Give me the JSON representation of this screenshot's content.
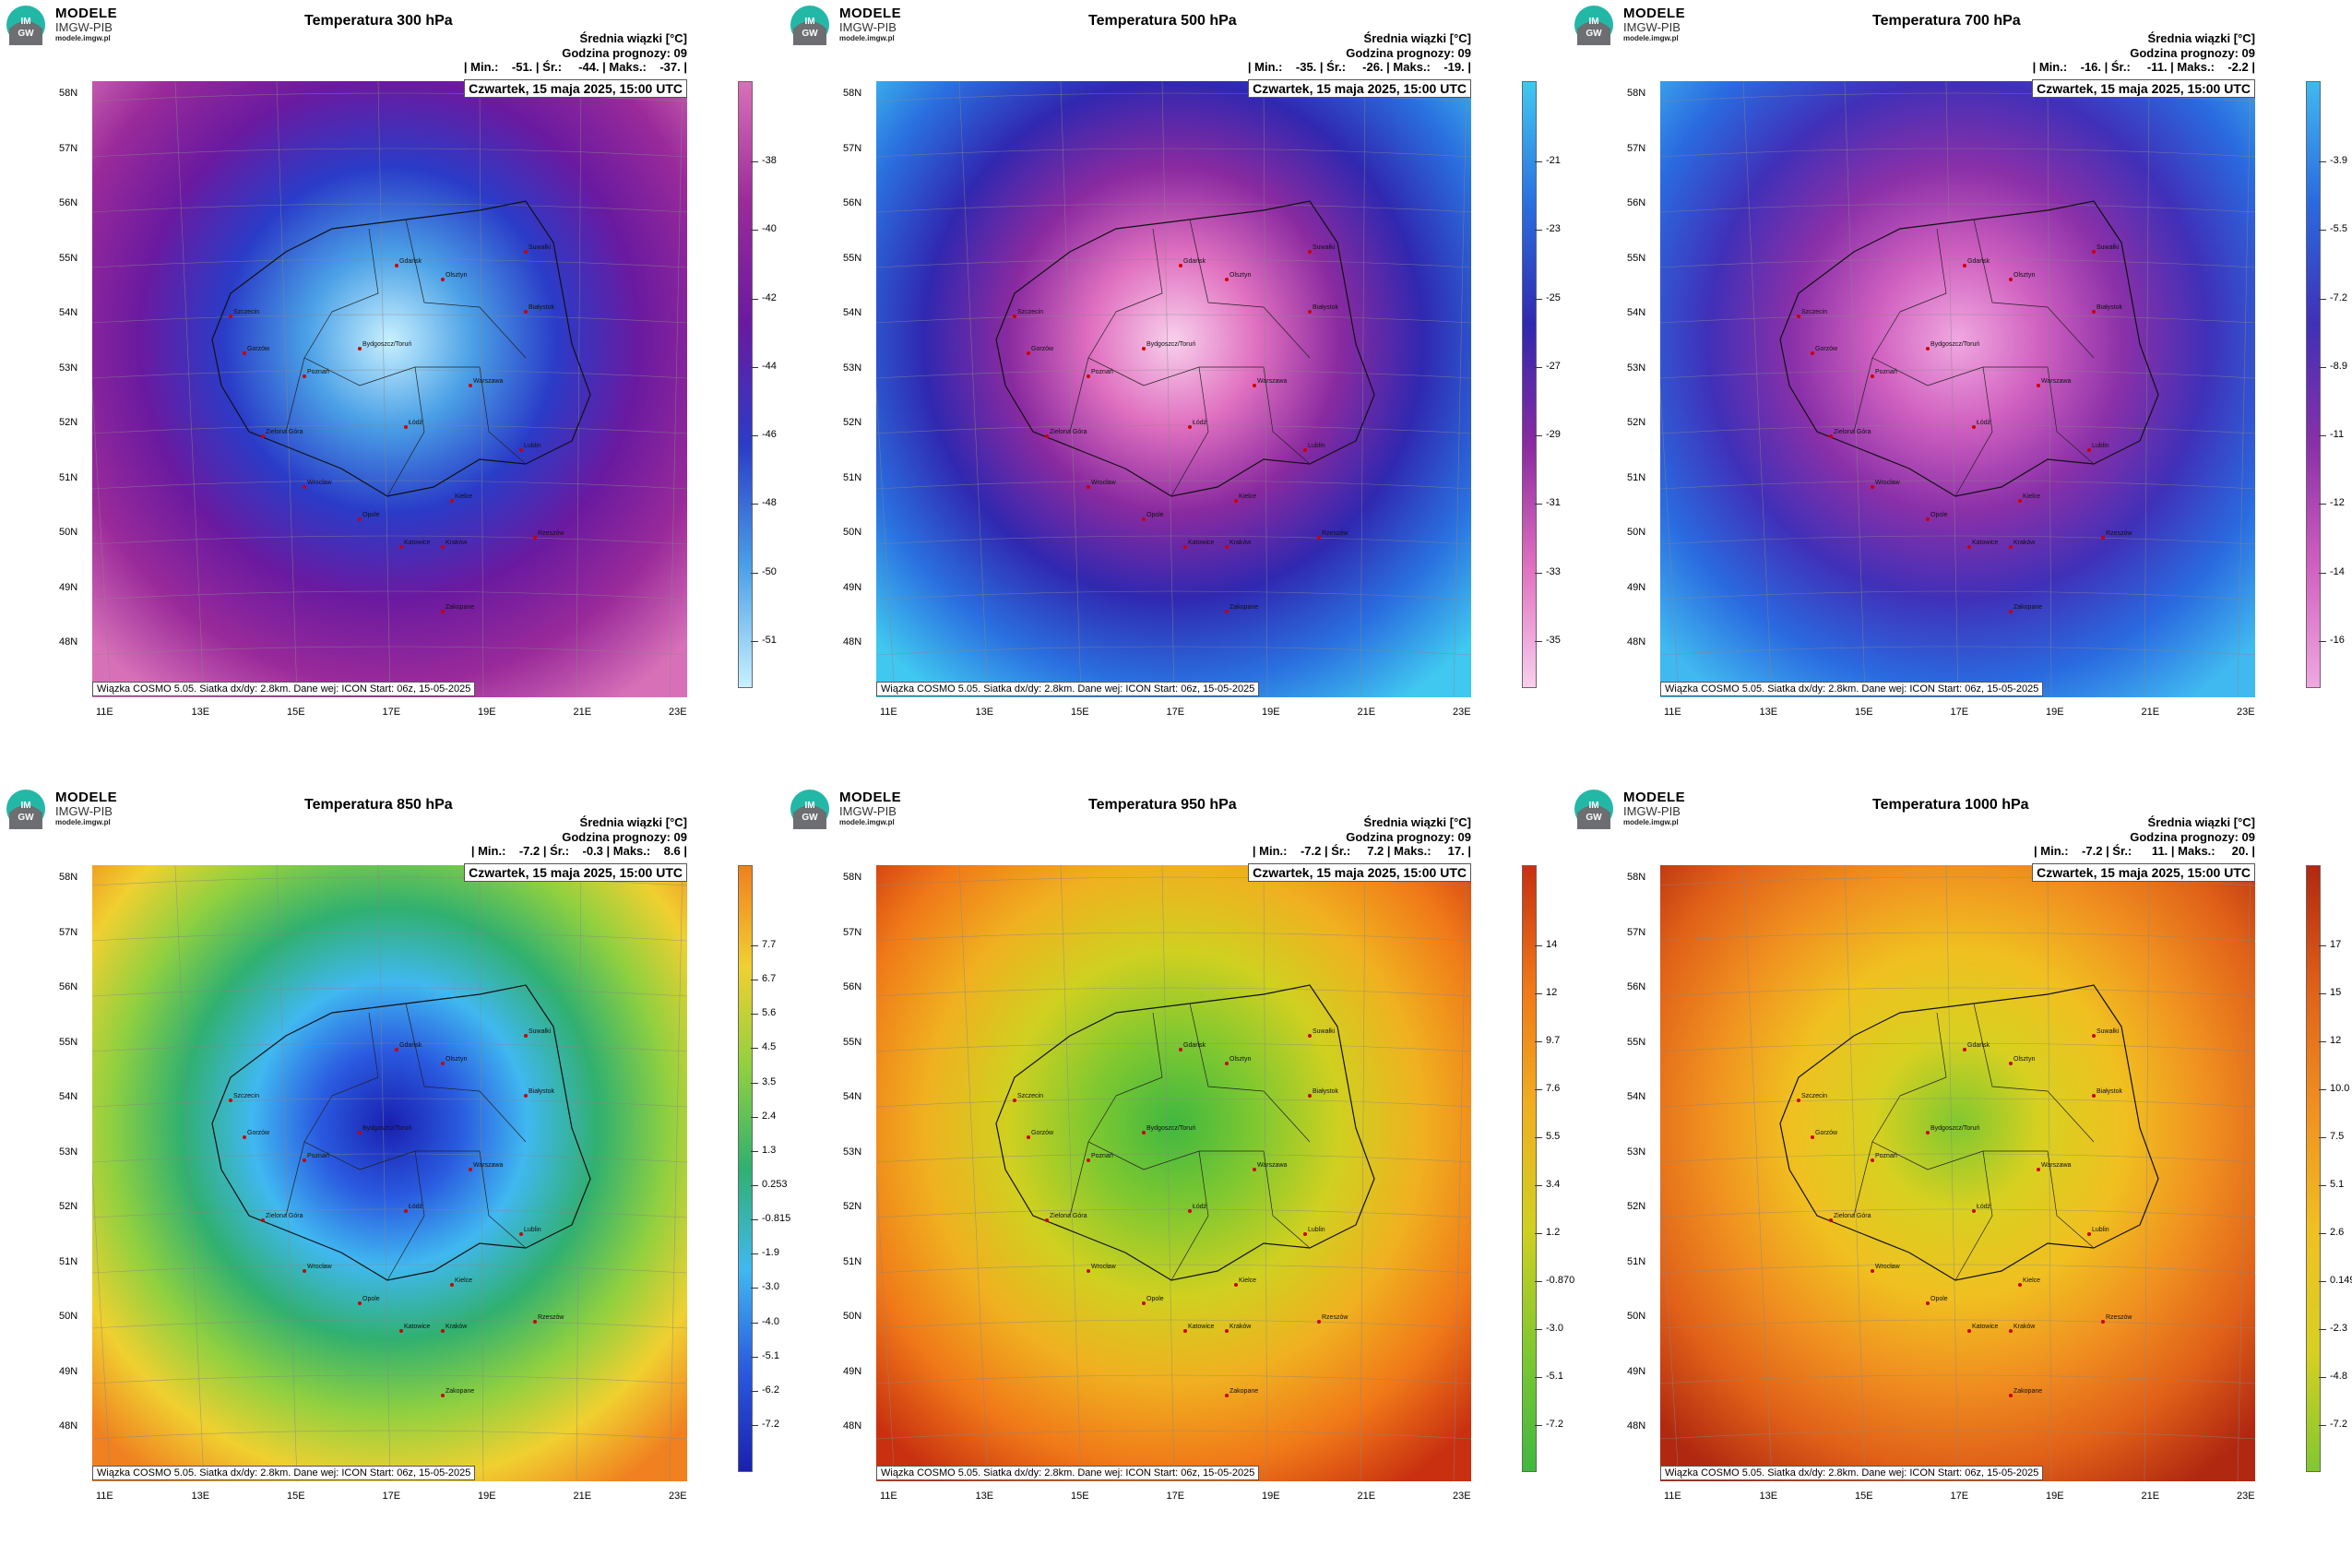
{
  "brand": {
    "line1": "MODELE",
    "line2": "IMGW-PIB",
    "line3": "modele.imgw.pl",
    "logo_text": "IM GW"
  },
  "common": {
    "date": "Czwartek, 15 maja 2025, 15:00 UTC",
    "footer": "Wiązka COSMO 5.05. Siatka dx/dy: 2.8km. Dane wej: ICON Start: 06z, 15-05-2025",
    "header1": "Średnia wiązki [°C]",
    "header2": "Godzina prognozy: 09",
    "lat_labels": [
      "58N",
      "57N",
      "56N",
      "55N",
      "54N",
      "53N",
      "52N",
      "51N",
      "50N",
      "49N",
      "48N"
    ],
    "lon_labels": [
      "11E",
      "13E",
      "15E",
      "17E",
      "19E",
      "21E",
      "23E"
    ]
  },
  "panels": [
    {
      "title": "Temperatura 300 hPa",
      "stats": "| Min.:    -51. | Śr.:     -44. | Maks.:    -37. |",
      "colorbar": [
        "-38",
        "-40",
        "-42",
        "-44",
        "-46",
        "-48",
        "-50",
        "-51"
      ],
      "palette": "cold",
      "scheme": [
        "#c8f0ff",
        "#4aa0e6",
        "#2a3cc8",
        "#6a1aa0",
        "#9a2a9a",
        "#d870b8"
      ]
    },
    {
      "title": "Temperatura 500 hPa",
      "stats": "| Min.:    -35. | Śr.:     -26. | Maks.:    -19. |",
      "colorbar": [
        "-21",
        "-23",
        "-25",
        "-27",
        "-29",
        "-31",
        "-33",
        "-35"
      ],
      "palette": "cold",
      "scheme": [
        "#f8d0ec",
        "#e070c0",
        "#8a2aa0",
        "#3028b0",
        "#2a70e0",
        "#40c8f0"
      ]
    },
    {
      "title": "Temperatura 700 hPa",
      "stats": "| Min.:    -16. | Śr.:     -11. | Maks.:    -2.2 |",
      "colorbar": [
        "-3.9",
        "-5.5",
        "-7.2",
        "-8.9",
        "-11",
        "-12",
        "-14",
        "-16"
      ],
      "palette": "cold",
      "scheme": [
        "#f0a8e0",
        "#d060c0",
        "#8a30a8",
        "#4030b8",
        "#2a6ae0",
        "#40b8f0"
      ]
    },
    {
      "title": "Temperatura 850 hPa",
      "stats": "| Min.:    -7.2 | Śr.:    -0.3 | Maks.:    8.6 |",
      "colorbar": [
        "7.7",
        "6.7",
        "5.6",
        "4.5",
        "3.5",
        "2.4",
        "1.3",
        "0.253",
        "-0.815",
        "-1.9",
        "-3.0",
        "-4.0",
        "-5.1",
        "-6.2",
        "-7.2"
      ],
      "palette": "warm",
      "scheme": [
        "#1a20b0",
        "#2a5ae0",
        "#40b8f0",
        "#30b070",
        "#90d040",
        "#f0d030",
        "#f08020"
      ]
    },
    {
      "title": "Temperatura 950 hPa",
      "stats": "| Min.:    -7.2 | Śr.:     7.2 | Maks.:     17. |",
      "colorbar": [
        "14",
        "12",
        "9.7",
        "7.6",
        "5.5",
        "3.4",
        "1.2",
        "-0.870",
        "-3.0",
        "-5.1",
        "-7.2"
      ],
      "palette": "warm",
      "scheme": [
        "#40b840",
        "#80c830",
        "#d0d020",
        "#f0b020",
        "#f07818",
        "#c83010"
      ]
    },
    {
      "title": "Temperatura 1000 hPa",
      "stats": "| Min.:    -7.2 | Śr.:      11. | Maks.:     20. |",
      "colorbar": [
        "17",
        "15",
        "12",
        "10.0",
        "7.5",
        "5.1",
        "2.6",
        "0.149",
        "-2.3",
        "-4.8",
        "-7.2"
      ],
      "palette": "warm",
      "scheme": [
        "#80c830",
        "#d8d020",
        "#f0c020",
        "#f09020",
        "#e06018",
        "#b02810"
      ]
    }
  ],
  "cities": [
    "Gdańsk",
    "Olsztyn",
    "Białystok",
    "Bydgoszcz/Toruń",
    "Szczecin",
    "Gorzów",
    "Poznań",
    "Warszawa",
    "Zielona Góra",
    "Łódź",
    "Lublin",
    "Wrocław",
    "Kielce",
    "Opole",
    "Katowice",
    "Kraków",
    "Rzeszów",
    "Zakopane",
    "Suwałki"
  ]
}
